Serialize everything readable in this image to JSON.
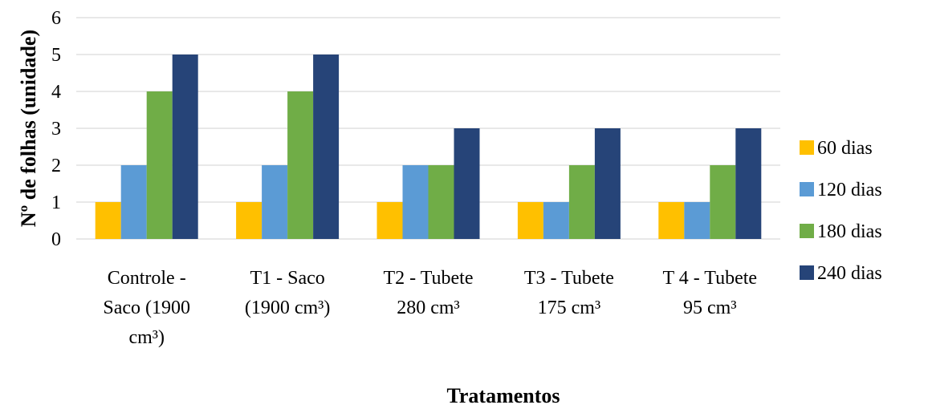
{
  "chart_data": {
    "type": "bar",
    "title": "",
    "xlabel": "Tratamentos",
    "ylabel": "Nº de folhas (unidade)",
    "ylim": [
      0,
      6
    ],
    "yticks": [
      "0",
      "1",
      "2",
      "3",
      "4",
      "5",
      "6"
    ],
    "grid": true,
    "legend_position": "right",
    "categories": [
      [
        "Controle -",
        "Saco (1900",
        "cm³)"
      ],
      [
        "T1 - Saco",
        "(1900 cm³)"
      ],
      [
        "T2 - Tubete",
        "280 cm³"
      ],
      [
        "T3 - Tubete",
        "175 cm³"
      ],
      [
        "T 4 - Tubete",
        "95 cm³"
      ]
    ],
    "series": [
      {
        "name": "60 dias",
        "color": "#FFC000",
        "values": [
          1,
          1,
          1,
          1,
          1
        ]
      },
      {
        "name": "120 dias",
        "color": "#5B9BD5",
        "values": [
          2,
          2,
          2,
          1,
          1
        ]
      },
      {
        "name": "180 dias",
        "color": "#70AD47",
        "values": [
          4,
          4,
          2,
          2,
          2
        ]
      },
      {
        "name": "240 dias",
        "color": "#264478",
        "values": [
          5,
          5,
          3,
          3,
          3
        ]
      }
    ]
  }
}
